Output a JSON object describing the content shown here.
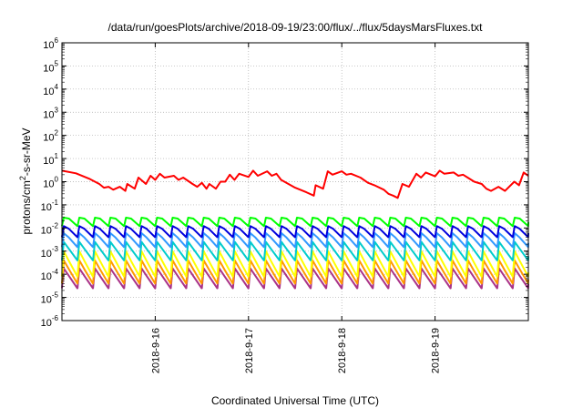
{
  "chart_data": {
    "type": "line",
    "title": "/data/run/goesPlots/archive/2018-09-19/23:00/flux/../flux/5daysMarsFluxes.txt",
    "xlabel": "Coordinated Universal Time (UTC)",
    "ylabel": {
      "base": "protons/cm",
      "sup": "2",
      "rest": "-s-sr-MeV"
    },
    "y_scale": "log",
    "ylim_exponents": [
      -6,
      6
    ],
    "y_tick_labels": [
      {
        "base": "10",
        "exp": "-6"
      },
      {
        "base": "10",
        "exp": "-5"
      },
      {
        "base": "10",
        "exp": "-4"
      },
      {
        "base": "10",
        "exp": "-3"
      },
      {
        "base": "10",
        "exp": "-2"
      },
      {
        "base": "10",
        "exp": "-1"
      },
      {
        "base": "10",
        "exp": "0"
      },
      {
        "base": "10",
        "exp": "1"
      },
      {
        "base": "10",
        "exp": "2"
      },
      {
        "base": "10",
        "exp": "3"
      },
      {
        "base": "10",
        "exp": "4"
      },
      {
        "base": "10",
        "exp": "5"
      },
      {
        "base": "10",
        "exp": "6"
      }
    ],
    "x_range": [
      "2018-09-15",
      "2018-09-20"
    ],
    "x_ticks": [
      "2018-9-16",
      "2018-9-17",
      "2018-9-18",
      "2018-9-19"
    ],
    "grid": true,
    "series": [
      {
        "color": "#ff0000",
        "x": [
          0.0,
          0.15,
          0.3,
          0.4,
          0.45,
          0.5,
          0.55,
          0.62,
          0.68,
          0.7,
          0.78,
          0.82,
          0.9,
          0.95,
          1.0,
          1.05,
          1.1,
          1.2,
          1.25,
          1.3,
          1.4,
          1.45,
          1.5,
          1.55,
          1.58,
          1.65,
          1.7,
          1.75,
          1.8,
          1.85,
          1.9,
          2.0,
          2.05,
          2.1,
          2.2,
          2.25,
          2.3,
          2.35,
          2.5,
          2.62,
          2.7,
          2.72,
          2.8,
          2.85,
          2.9,
          3.0,
          3.05,
          3.1,
          3.2,
          3.28,
          3.35,
          3.45,
          3.5,
          3.55,
          3.6,
          3.65,
          3.72,
          3.8,
          3.85,
          3.9,
          4.0,
          4.05,
          4.1,
          4.2,
          4.25,
          4.3,
          4.35,
          4.42,
          4.5,
          4.55,
          4.6,
          4.68,
          4.75,
          4.85,
          4.9,
          4.95,
          5.0
        ],
        "y": [
          3.0,
          2.3,
          1.3,
          0.8,
          0.55,
          0.6,
          0.45,
          0.6,
          0.4,
          0.8,
          0.5,
          1.5,
          0.8,
          1.8,
          1.2,
          2.2,
          1.5,
          1.8,
          1.2,
          1.5,
          0.8,
          0.6,
          0.9,
          0.5,
          0.8,
          0.5,
          1.0,
          1.0,
          2.0,
          1.2,
          2.2,
          1.6,
          3.0,
          1.8,
          2.8,
          1.8,
          2.2,
          1.2,
          0.55,
          0.35,
          0.25,
          0.7,
          0.5,
          2.8,
          2.0,
          2.8,
          2.0,
          2.2,
          1.5,
          0.9,
          0.7,
          0.45,
          0.3,
          0.25,
          0.2,
          0.8,
          0.6,
          2.2,
          1.5,
          2.5,
          1.7,
          3.0,
          2.2,
          2.5,
          1.8,
          2.0,
          1.5,
          1.0,
          0.8,
          0.5,
          0.4,
          0.6,
          0.4,
          1.0,
          0.7,
          2.5,
          1.8
        ]
      },
      {
        "color": "#00ff00",
        "kind": "sawtooth",
        "cycles": 30,
        "low": 0.012,
        "high": 0.028
      },
      {
        "color": "#0000dd",
        "kind": "sawtooth",
        "cycles": 30,
        "low": 0.004,
        "high": 0.012
      },
      {
        "color": "#3399ff",
        "kind": "sawtooth",
        "cycles": 30,
        "low": 0.0015,
        "high": 0.006
      },
      {
        "color": "#00cccc",
        "kind": "sawtooth",
        "cycles": 30,
        "low": 0.0004,
        "high": 0.0025
      },
      {
        "color": "#ffff00",
        "kind": "sawtooth",
        "cycles": 30,
        "low": 8e-05,
        "high": 0.001
      },
      {
        "color": "#ff9900",
        "kind": "sawtooth",
        "cycles": 30,
        "low": 4e-05,
        "high": 0.0004
      },
      {
        "color": "#aa3388",
        "kind": "sawtooth",
        "cycles": 30,
        "low": 2.5e-05,
        "high": 0.00018
      }
    ]
  }
}
